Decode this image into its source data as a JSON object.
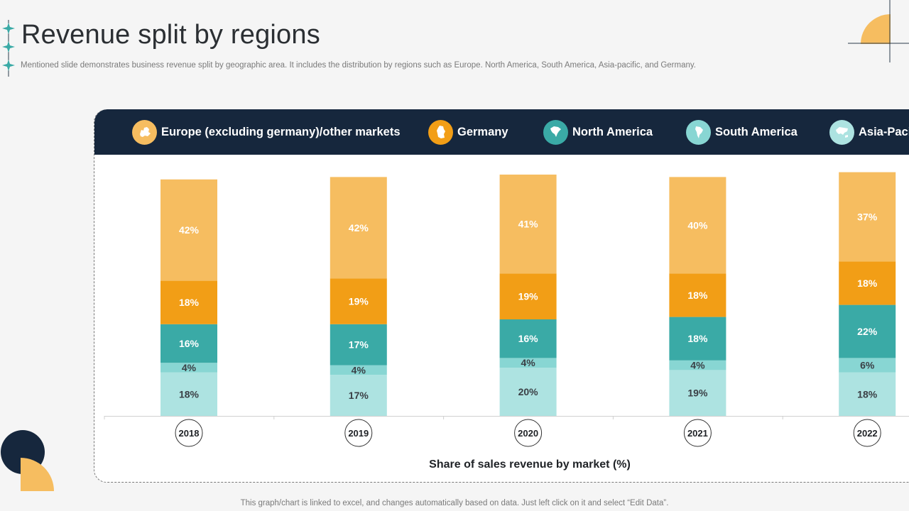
{
  "title": "Revenue split by regions",
  "subtitle": "Mentioned slide demonstrates business revenue split by geographic area. It includes the distribution by regions such as Europe. North America, South America, Asia-pacific, and Germany.",
  "footer_note": "This graph/chart is linked to excel,  and changes automatically based on data. Just left click on it and select “Edit Data”.",
  "colors": {
    "background": "#f5f5f5",
    "legend_bar": "#16273d",
    "europe": "#f6bd60",
    "germany": "#f29e16",
    "north_america": "#3aaaa6",
    "south_america": "#88d6d3",
    "asia_pacific": "#ade3e1"
  },
  "legend": [
    {
      "label": "Europe (excluding germany)/other markets",
      "icon": "europe-map-icon",
      "color": "#f6bd60"
    },
    {
      "label": "Germany",
      "icon": "germany-map-icon",
      "color": "#f29e16"
    },
    {
      "label": "North America",
      "icon": "north-america-map-icon",
      "color": "#3aaaa6"
    },
    {
      "label": "South America",
      "icon": "south-america-map-icon",
      "color": "#88d6d3"
    },
    {
      "label": "Asia-Pacific",
      "icon": "asia-pacific-map-icon",
      "color": "#ade3e1"
    }
  ],
  "chart_data": {
    "type": "bar",
    "stacked": true,
    "categories": [
      "2018",
      "2019",
      "2020",
      "2021",
      "2022"
    ],
    "series": [
      {
        "name": "Asia-Pacific",
        "values": [
          18,
          17,
          20,
          19,
          18
        ],
        "color": "#ade3e1"
      },
      {
        "name": "South America",
        "values": [
          4,
          4,
          4,
          4,
          6
        ],
        "color": "#88d6d3"
      },
      {
        "name": "North America",
        "values": [
          16,
          17,
          16,
          18,
          22
        ],
        "color": "#3aaaa6"
      },
      {
        "name": "Germany",
        "values": [
          18,
          19,
          19,
          18,
          18
        ],
        "color": "#f29e16"
      },
      {
        "name": "Europe (excluding germany)/other markets",
        "values": [
          42,
          42,
          41,
          40,
          37
        ],
        "color": "#f6bd60"
      }
    ],
    "value_suffix": "%",
    "xlabel": "Share of sales revenue by market (%)",
    "ylabel": "",
    "grid": false,
    "legend_position": "top"
  }
}
